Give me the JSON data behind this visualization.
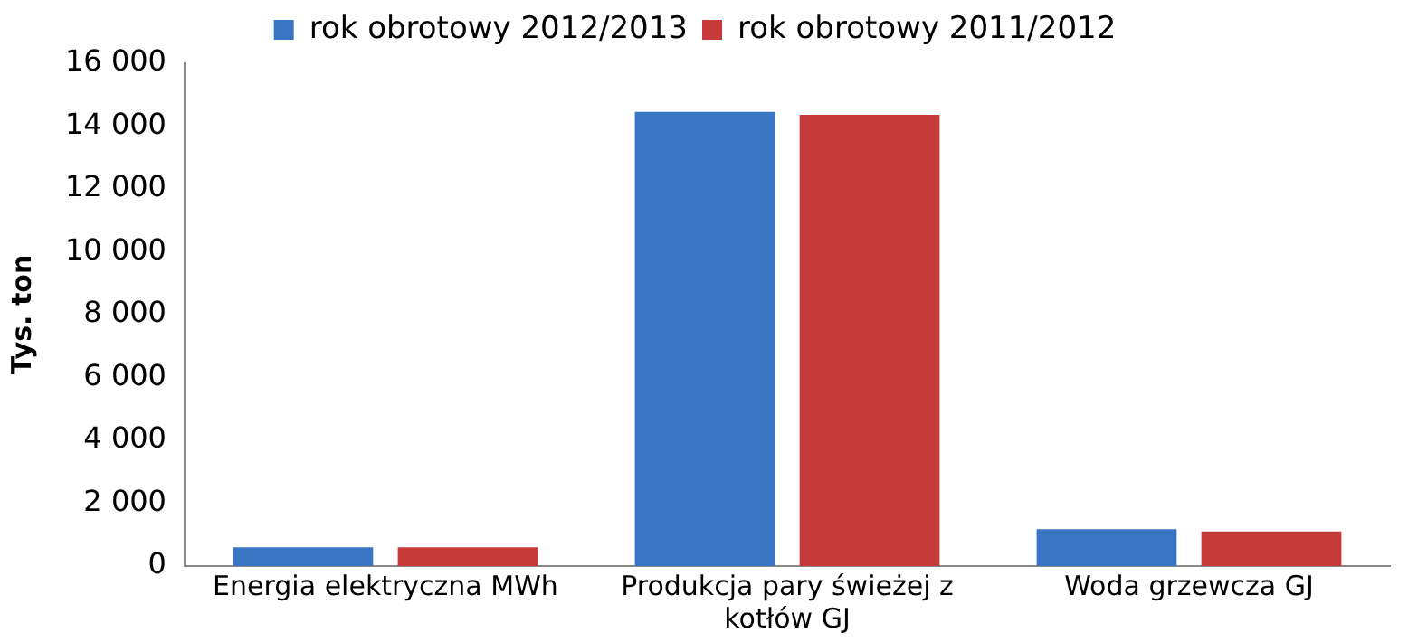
{
  "chart_data": {
    "type": "bar",
    "ylabel": "Tys. ton",
    "categories": [
      "Energia elektryczna MWh",
      "Produkcja pary świeżej z kotłów GJ",
      "Woda grzewcza GJ"
    ],
    "series": [
      {
        "name": "rok obrotowy 2012/2013",
        "color": "#3a75c4",
        "values": [
          600,
          14450,
          1170
        ]
      },
      {
        "name": "rok obrotowy 2011/2012",
        "color": "#c73a3a",
        "values": [
          600,
          14360,
          1100
        ]
      }
    ],
    "ylim": [
      0,
      16000
    ],
    "yticks": [
      {
        "value": 0,
        "label": "0"
      },
      {
        "value": 2000,
        "label": "2 000"
      },
      {
        "value": 4000,
        "label": "4 000"
      },
      {
        "value": 6000,
        "label": "6 000"
      },
      {
        "value": 8000,
        "label": "8 000"
      },
      {
        "value": 10000,
        "label": "10 000"
      },
      {
        "value": 12000,
        "label": "12 000"
      },
      {
        "value": 14000,
        "label": "14 000"
      },
      {
        "value": 16000,
        "label": "16 000"
      }
    ],
    "grid": false,
    "legend": "top"
  }
}
